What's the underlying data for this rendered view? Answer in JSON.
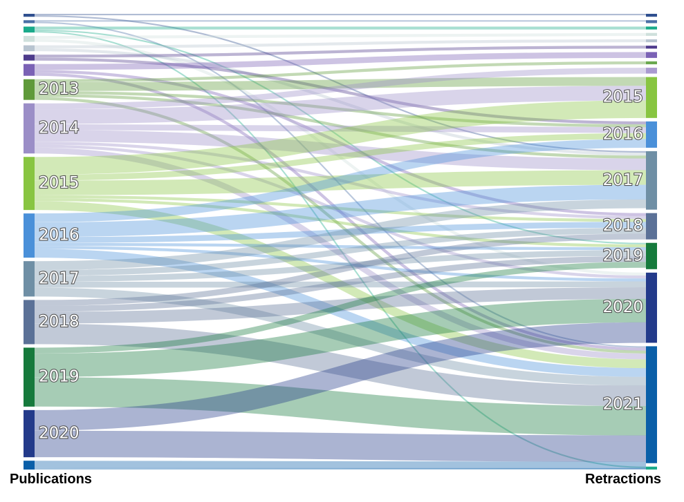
{
  "captions": {
    "left": "Publications",
    "right": "Retractions"
  },
  "colors": {
    "y2007": "#2f4f8f",
    "y2008": "#4a6fa5",
    "y2009": "#1aaa8a",
    "y2010": "#cfe0dc",
    "y2011": "#b8c4d0",
    "y2012a": "#4e3b8c",
    "y2012": "#7b62b5",
    "y2012c": "#6aa84f",
    "y2012d": "#a99ad0",
    "y2013": "#5f9a3a",
    "y2014": "#9b8ec7",
    "y2015": "#88c541",
    "y2016": "#4a90d9",
    "y2017": "#6f8fa5",
    "y2018": "#5b7197",
    "y2019": "#167a3c",
    "y2020": "#233a8a",
    "y2021": "#0a5fa8",
    "y2022": "#1aaa8a"
  },
  "left_nodes": [
    {
      "id": "L2007",
      "label": "",
      "value": 1,
      "color": "y2007"
    },
    {
      "id": "L2008",
      "label": "",
      "value": 1,
      "color": "y2008"
    },
    {
      "id": "L2009",
      "label": "",
      "value": 2,
      "color": "y2009"
    },
    {
      "id": "L2010",
      "label": "",
      "value": 2,
      "color": "y2010"
    },
    {
      "id": "L2011",
      "label": "",
      "value": 2,
      "color": "y2011"
    },
    {
      "id": "L2012a",
      "label": "",
      "value": 2,
      "color": "y2012a"
    },
    {
      "id": "L2012",
      "label": "",
      "value": 4,
      "color": "y2012"
    },
    {
      "id": "L2013",
      "label": "2013",
      "value": 7,
      "color": "y2013"
    },
    {
      "id": "L2014",
      "label": "2014",
      "value": 17,
      "color": "y2014"
    },
    {
      "id": "L2015",
      "label": "2015",
      "value": 18,
      "color": "y2015"
    },
    {
      "id": "L2016",
      "label": "2016",
      "value": 15,
      "color": "y2016"
    },
    {
      "id": "L2017",
      "label": "2017",
      "value": 12,
      "color": "y2017"
    },
    {
      "id": "L2018",
      "label": "2018",
      "value": 15,
      "color": "y2018"
    },
    {
      "id": "L2019",
      "label": "2019",
      "value": 20,
      "color": "y2019"
    },
    {
      "id": "L2020",
      "label": "2020",
      "value": 16,
      "color": "y2020"
    },
    {
      "id": "L2021",
      "label": "",
      "value": 3,
      "color": "y2021"
    }
  ],
  "right_nodes": [
    {
      "id": "R2007",
      "label": "",
      "value": 1,
      "color": "y2007"
    },
    {
      "id": "R2008",
      "label": "",
      "value": 1,
      "color": "y2008"
    },
    {
      "id": "R2009",
      "label": "",
      "value": 1,
      "color": "y2009"
    },
    {
      "id": "R2010",
      "label": "",
      "value": 1,
      "color": "y2010"
    },
    {
      "id": "R2011",
      "label": "",
      "value": 1,
      "color": "y2011"
    },
    {
      "id": "R2012a",
      "label": "",
      "value": 1,
      "color": "y2012a"
    },
    {
      "id": "R2012b",
      "label": "",
      "value": 2,
      "color": "y2012"
    },
    {
      "id": "R2012c",
      "label": "",
      "value": 1,
      "color": "y2012c"
    },
    {
      "id": "R2012d",
      "label": "",
      "value": 2,
      "color": "y2012d"
    },
    {
      "id": "R2015",
      "label": "2015",
      "value": 14,
      "color": "y2015"
    },
    {
      "id": "R2016",
      "label": "2016",
      "value": 9,
      "color": "y2016"
    },
    {
      "id": "R2017",
      "label": "2017",
      "value": 20,
      "color": "y2017"
    },
    {
      "id": "R2018",
      "label": "2018",
      "value": 9,
      "color": "y2018"
    },
    {
      "id": "R2019",
      "label": "2019",
      "value": 9,
      "color": "y2019"
    },
    {
      "id": "R2020",
      "label": "2020",
      "value": 24,
      "color": "y2020"
    },
    {
      "id": "R2021",
      "label": "2021",
      "value": 40,
      "color": "y2021"
    },
    {
      "id": "R2022",
      "label": "",
      "value": 1,
      "color": "y2022"
    }
  ],
  "links": [
    {
      "source": "L2007",
      "target": "R2007",
      "value": 0.5
    },
    {
      "source": "L2007",
      "target": "R2017",
      "value": 0.5
    },
    {
      "source": "L2008",
      "target": "R2008",
      "value": 0.5
    },
    {
      "source": "L2008",
      "target": "R2021",
      "value": 0.5
    },
    {
      "source": "L2009",
      "target": "R2009",
      "value": 1
    },
    {
      "source": "L2009",
      "target": "R2019",
      "value": 0.5
    },
    {
      "source": "L2009",
      "target": "R2022",
      "value": 0.5
    },
    {
      "source": "L2010",
      "target": "R2010",
      "value": 1
    },
    {
      "source": "L2010",
      "target": "R2020",
      "value": 1
    },
    {
      "source": "L2011",
      "target": "R2011",
      "value": 1
    },
    {
      "source": "L2011",
      "target": "R2017",
      "value": 1
    },
    {
      "source": "L2012a",
      "target": "R2012a",
      "value": 1
    },
    {
      "source": "L2012a",
      "target": "R2016",
      "value": 1
    },
    {
      "source": "L2012",
      "target": "R2012b",
      "value": 2
    },
    {
      "source": "L2012",
      "target": "R2018",
      "value": 1
    },
    {
      "source": "L2012",
      "target": "R2021",
      "value": 1
    },
    {
      "source": "L2013",
      "target": "R2012c",
      "value": 1
    },
    {
      "source": "L2013",
      "target": "R2015",
      "value": 3
    },
    {
      "source": "L2013",
      "target": "R2016",
      "value": 1
    },
    {
      "source": "L2013",
      "target": "R2017",
      "value": 1
    },
    {
      "source": "L2013",
      "target": "R2021",
      "value": 1
    },
    {
      "source": "L2014",
      "target": "R2012d",
      "value": 2
    },
    {
      "source": "L2014",
      "target": "R2015",
      "value": 5
    },
    {
      "source": "L2014",
      "target": "R2016",
      "value": 2
    },
    {
      "source": "L2014",
      "target": "R2017",
      "value": 4
    },
    {
      "source": "L2014",
      "target": "R2018",
      "value": 1
    },
    {
      "source": "L2014",
      "target": "R2020",
      "value": 1
    },
    {
      "source": "L2014",
      "target": "R2021",
      "value": 2
    },
    {
      "source": "L2015",
      "target": "R2015",
      "value": 6
    },
    {
      "source": "L2015",
      "target": "R2016",
      "value": 2
    },
    {
      "source": "L2015",
      "target": "R2017",
      "value": 5
    },
    {
      "source": "L2015",
      "target": "R2018",
      "value": 1
    },
    {
      "source": "L2015",
      "target": "R2019",
      "value": 1
    },
    {
      "source": "L2015",
      "target": "R2021",
      "value": 3
    },
    {
      "source": "L2016",
      "target": "R2016",
      "value": 3
    },
    {
      "source": "L2016",
      "target": "R2017",
      "value": 5
    },
    {
      "source": "L2016",
      "target": "R2018",
      "value": 2
    },
    {
      "source": "L2016",
      "target": "R2019",
      "value": 1
    },
    {
      "source": "L2016",
      "target": "R2020",
      "value": 1
    },
    {
      "source": "L2016",
      "target": "R2021",
      "value": 3
    },
    {
      "source": "L2017",
      "target": "R2017",
      "value": 3
    },
    {
      "source": "L2017",
      "target": "R2018",
      "value": 2
    },
    {
      "source": "L2017",
      "target": "R2019",
      "value": 2
    },
    {
      "source": "L2017",
      "target": "R2020",
      "value": 2
    },
    {
      "source": "L2017",
      "target": "R2021",
      "value": 3
    },
    {
      "source": "L2018",
      "target": "R2018",
      "value": 2
    },
    {
      "source": "L2018",
      "target": "R2019",
      "value": 2
    },
    {
      "source": "L2018",
      "target": "R2020",
      "value": 4
    },
    {
      "source": "L2018",
      "target": "R2021",
      "value": 7
    },
    {
      "source": "L2019",
      "target": "R2019",
      "value": 2
    },
    {
      "source": "L2019",
      "target": "R2020",
      "value": 8
    },
    {
      "source": "L2019",
      "target": "R2021",
      "value": 10
    },
    {
      "source": "L2020",
      "target": "R2020",
      "value": 7
    },
    {
      "source": "L2020",
      "target": "R2021",
      "value": 9
    },
    {
      "source": "L2021",
      "target": "R2021",
      "value": 2.5
    },
    {
      "source": "L2021",
      "target": "R2022",
      "value": 0.5
    }
  ]
}
